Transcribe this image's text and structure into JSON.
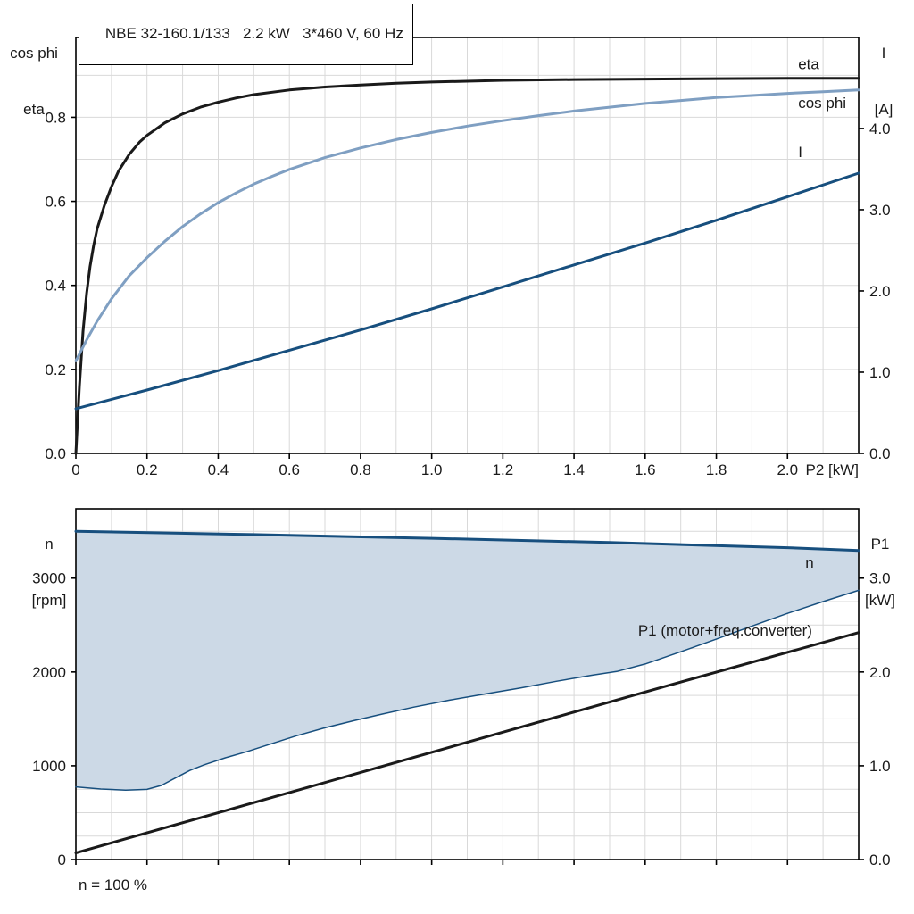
{
  "chart_data": [
    {
      "type": "line",
      "title": "NBE 32-160.1/133   2.2 kW   3*460 V, 60 Hz",
      "x_label": {
        "text": "P2 [kW]",
        "x": 2.2,
        "anchor": "end"
      },
      "x_range": [
        0,
        2.2
      ],
      "x_ticks": {
        "values": [
          0,
          0.2,
          0.4,
          0.6,
          0.8,
          1.0,
          1.2,
          1.4,
          1.6,
          1.8,
          2.0
        ],
        "labels": [
          "0",
          "0.2",
          "0.4",
          "0.6",
          "0.8",
          "1.0",
          "1.2",
          "1.4",
          "1.6",
          "1.8",
          "2.0"
        ]
      },
      "y_left": {
        "title_lines": [
          "cos phi",
          "eta"
        ],
        "range": [
          0,
          0.99
        ],
        "ticks": [
          0,
          0.2,
          0.4,
          0.6,
          0.8
        ],
        "tick_labels": [
          "0.0",
          "0.2",
          "0.4",
          "0.6",
          "0.8"
        ]
      },
      "y_right": {
        "title_lines": [
          "I",
          "[A]"
        ],
        "range": [
          0,
          5.12
        ],
        "ticks": [
          0,
          1,
          2,
          3,
          4
        ],
        "tick_labels": [
          "0.0",
          "1.0",
          "2.0",
          "3.0",
          "4.0"
        ]
      },
      "grid": {
        "color": "#d9d9d9",
        "x_step": 0.1,
        "y_step": 0.1
      },
      "series": [
        {
          "name": "eta",
          "axis": "left",
          "color": "#1a1a1a",
          "width": 3,
          "points": [
            [
              0,
              0
            ],
            [
              0.01,
              0.16
            ],
            [
              0.02,
              0.29
            ],
            [
              0.03,
              0.38
            ],
            [
              0.04,
              0.445
            ],
            [
              0.05,
              0.495
            ],
            [
              0.06,
              0.535
            ],
            [
              0.08,
              0.59
            ],
            [
              0.1,
              0.635
            ],
            [
              0.12,
              0.672
            ],
            [
              0.15,
              0.712
            ],
            [
              0.18,
              0.742
            ],
            [
              0.2,
              0.757
            ],
            [
              0.25,
              0.787
            ],
            [
              0.3,
              0.808
            ],
            [
              0.35,
              0.824
            ],
            [
              0.4,
              0.836
            ],
            [
              0.45,
              0.846
            ],
            [
              0.5,
              0.854
            ],
            [
              0.6,
              0.865
            ],
            [
              0.7,
              0.872
            ],
            [
              0.8,
              0.877
            ],
            [
              0.9,
              0.881
            ],
            [
              1.0,
              0.884
            ],
            [
              1.2,
              0.888
            ],
            [
              1.4,
              0.89
            ],
            [
              1.6,
              0.891
            ],
            [
              1.8,
              0.892
            ],
            [
              2.0,
              0.893
            ],
            [
              2.2,
              0.893
            ]
          ]
        },
        {
          "name": "cos phi",
          "axis": "left",
          "color": "#7f9fc2",
          "width": 3,
          "points": [
            [
              0,
              0.22
            ],
            [
              0.03,
              0.27
            ],
            [
              0.06,
              0.315
            ],
            [
              0.1,
              0.368
            ],
            [
              0.15,
              0.423
            ],
            [
              0.2,
              0.466
            ],
            [
              0.25,
              0.505
            ],
            [
              0.3,
              0.54
            ],
            [
              0.35,
              0.57
            ],
            [
              0.4,
              0.597
            ],
            [
              0.45,
              0.62
            ],
            [
              0.5,
              0.641
            ],
            [
              0.55,
              0.659
            ],
            [
              0.6,
              0.676
            ],
            [
              0.7,
              0.704
            ],
            [
              0.8,
              0.727
            ],
            [
              0.9,
              0.747
            ],
            [
              1.0,
              0.764
            ],
            [
              1.1,
              0.779
            ],
            [
              1.2,
              0.792
            ],
            [
              1.3,
              0.804
            ],
            [
              1.4,
              0.815
            ],
            [
              1.5,
              0.824
            ],
            [
              1.6,
              0.833
            ],
            [
              1.7,
              0.84
            ],
            [
              1.8,
              0.847
            ],
            [
              1.9,
              0.852
            ],
            [
              2.0,
              0.857
            ],
            [
              2.1,
              0.861
            ],
            [
              2.2,
              0.865
            ]
          ]
        },
        {
          "name": "I",
          "axis": "right",
          "color": "#174f7e",
          "width": 3,
          "points": [
            [
              0,
              0.55
            ],
            [
              0.2,
              0.78
            ],
            [
              0.4,
              1.02
            ],
            [
              0.6,
              1.27
            ],
            [
              0.8,
              1.52
            ],
            [
              1.0,
              1.78
            ],
            [
              1.2,
              2.05
            ],
            [
              1.4,
              2.32
            ],
            [
              1.6,
              2.59
            ],
            [
              1.8,
              2.87
            ],
            [
              2.0,
              3.16
            ],
            [
              2.2,
              3.45
            ]
          ]
        }
      ],
      "annotations": [
        {
          "text": "eta",
          "x": 2.03,
          "y": 0.915,
          "axis": "left",
          "color": "#1a1a1a",
          "anchor": "start"
        },
        {
          "text": "cos phi",
          "x": 2.03,
          "y": 0.822,
          "axis": "left",
          "color": "#7f9fc2",
          "anchor": "start"
        },
        {
          "text": "I",
          "x": 2.03,
          "y": 3.65,
          "axis": "right",
          "color": "#174f7e",
          "anchor": "start"
        }
      ]
    },
    {
      "type": "line",
      "x_range": [
        0,
        2.2
      ],
      "x_ticks": {
        "values": [
          0,
          0.2,
          0.4,
          0.6,
          0.8,
          1.0,
          1.2,
          1.4,
          1.6,
          1.8,
          2.0
        ],
        "labels": null
      },
      "y_left": {
        "title_lines": [
          "n",
          "[rpm]"
        ],
        "range": [
          0,
          3740
        ],
        "ticks": [
          0,
          1000,
          2000,
          3000
        ],
        "tick_labels": [
          "0",
          "1000",
          "2000",
          "3000"
        ]
      },
      "y_right": {
        "title_lines": [
          "P1",
          "[kW]"
        ],
        "range": [
          0,
          3.74
        ],
        "ticks": [
          0,
          1,
          2,
          3
        ],
        "tick_labels": [
          "0.0",
          "1.0",
          "2.0",
          "3.0"
        ]
      },
      "grid": {
        "color": "#d9d9d9",
        "x_step": 0.1,
        "y_step": 250
      },
      "band": {
        "name": "speed-range-band",
        "fill": "#ccd9e6",
        "upper": [
          [
            0,
            3500
          ],
          [
            0.5,
            3465
          ],
          [
            1.0,
            3425
          ],
          [
            1.5,
            3380
          ],
          [
            2.0,
            3325
          ],
          [
            2.2,
            3295
          ]
        ],
        "lower": [
          [
            0,
            775
          ],
          [
            0.07,
            752
          ],
          [
            0.14,
            740
          ],
          [
            0.2,
            748
          ],
          [
            0.24,
            790
          ],
          [
            0.28,
            870
          ],
          [
            0.32,
            950
          ],
          [
            0.36,
            1010
          ],
          [
            0.42,
            1085
          ],
          [
            0.48,
            1150
          ],
          [
            0.55,
            1235
          ],
          [
            0.62,
            1320
          ],
          [
            0.7,
            1405
          ],
          [
            0.78,
            1480
          ],
          [
            0.86,
            1550
          ],
          [
            0.95,
            1625
          ],
          [
            1.05,
            1700
          ],
          [
            1.15,
            1765
          ],
          [
            1.25,
            1830
          ],
          [
            1.35,
            1900
          ],
          [
            1.45,
            1965
          ],
          [
            1.52,
            2005
          ],
          [
            1.6,
            2085
          ],
          [
            1.7,
            2215
          ],
          [
            1.8,
            2350
          ],
          [
            1.9,
            2490
          ],
          [
            2.0,
            2625
          ],
          [
            2.1,
            2750
          ],
          [
            2.2,
            2870
          ]
        ]
      },
      "series": [
        {
          "name": "n",
          "axis": "left",
          "color": "#174f7e",
          "width": 3,
          "points": [
            [
              0,
              3500
            ],
            [
              0.5,
              3465
            ],
            [
              1.0,
              3425
            ],
            [
              1.5,
              3380
            ],
            [
              2.0,
              3325
            ],
            [
              2.2,
              3295
            ]
          ]
        },
        {
          "name": "speed range lower limit",
          "axis": "left",
          "color": "#174f7e",
          "width": 1.5,
          "points": [
            [
              0,
              775
            ],
            [
              0.07,
              752
            ],
            [
              0.14,
              740
            ],
            [
              0.2,
              748
            ],
            [
              0.24,
              790
            ],
            [
              0.28,
              870
            ],
            [
              0.32,
              950
            ],
            [
              0.36,
              1010
            ],
            [
              0.42,
              1085
            ],
            [
              0.48,
              1150
            ],
            [
              0.55,
              1235
            ],
            [
              0.62,
              1320
            ],
            [
              0.7,
              1405
            ],
            [
              0.78,
              1480
            ],
            [
              0.86,
              1550
            ],
            [
              0.95,
              1625
            ],
            [
              1.05,
              1700
            ],
            [
              1.15,
              1765
            ],
            [
              1.25,
              1830
            ],
            [
              1.35,
              1900
            ],
            [
              1.45,
              1965
            ],
            [
              1.52,
              2005
            ],
            [
              1.6,
              2085
            ],
            [
              1.7,
              2215
            ],
            [
              1.8,
              2350
            ],
            [
              1.9,
              2490
            ],
            [
              2.0,
              2625
            ],
            [
              2.1,
              2750
            ],
            [
              2.2,
              2870
            ]
          ]
        },
        {
          "name": "P1 (motor+freq.converter)",
          "axis": "right",
          "color": "#1a1a1a",
          "width": 3,
          "points": [
            [
              0,
              0.07
            ],
            [
              0.55,
              0.66
            ],
            [
              1.1,
              1.25
            ],
            [
              1.65,
              1.84
            ],
            [
              2.2,
              2.42
            ]
          ]
        }
      ],
      "annotations": [
        {
          "text": "n",
          "x": 2.05,
          "y": 3110,
          "axis": "left",
          "color": "#174f7e",
          "anchor": "start"
        },
        {
          "text": "P1 (motor+freq.converter)",
          "x": 1.58,
          "y": 2.39,
          "axis": "right",
          "color": "#1a1a1a",
          "anchor": "start"
        }
      ],
      "note": "n = 100 %"
    }
  ]
}
